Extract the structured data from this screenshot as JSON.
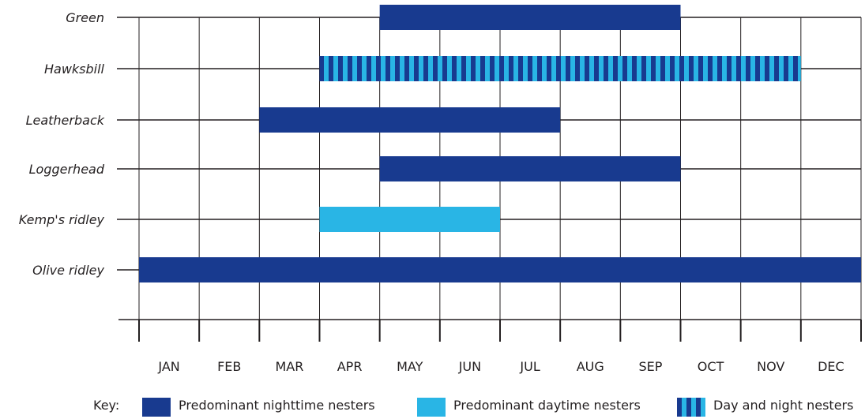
{
  "chart_data": {
    "type": "gantt",
    "title": "",
    "months": [
      "JAN",
      "FEB",
      "MAR",
      "APR",
      "MAY",
      "JUN",
      "JUL",
      "AUG",
      "SEP",
      "OCT",
      "NOV",
      "DEC"
    ],
    "series": [
      {
        "name": "Green",
        "start_month": 5,
        "end_month": 9,
        "pattern": "night"
      },
      {
        "name": "Hawksbill",
        "start_month": 4,
        "end_month": 11,
        "pattern": "both"
      },
      {
        "name": "Leatherback",
        "start_month": 3,
        "end_month": 7,
        "pattern": "night"
      },
      {
        "name": "Loggerhead",
        "start_month": 5,
        "end_month": 9,
        "pattern": "night"
      },
      {
        "name": "Kemp's ridley",
        "start_month": 4,
        "end_month": 6,
        "pattern": "day"
      },
      {
        "name": "Olive ridley",
        "start_month": 1,
        "end_month": 12,
        "pattern": "night"
      }
    ],
    "legend": {
      "label": "Key:",
      "placement": "bottom",
      "items": [
        {
          "pattern": "night",
          "label": "Predominant nighttime nesters"
        },
        {
          "pattern": "day",
          "label": "Predominant daytime nesters"
        },
        {
          "pattern": "both",
          "label": "Day and night nesters"
        }
      ]
    },
    "grid": true,
    "colors": {
      "night": "#183a8f",
      "day": "#29b5e5",
      "grid": "#231f20",
      "text": "#231f20"
    }
  }
}
